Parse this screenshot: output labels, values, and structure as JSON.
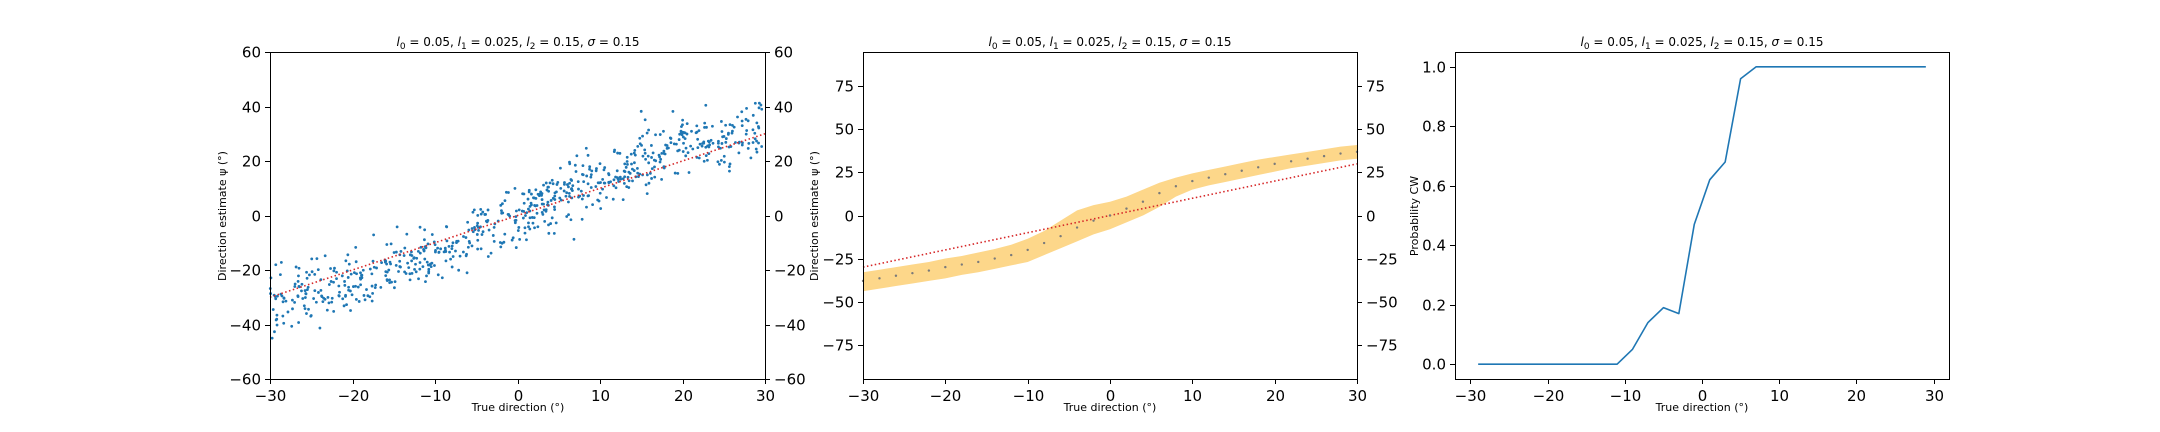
{
  "chart_data": [
    {
      "type": "scatter",
      "title": {
        "l0": "0.05",
        "l1": "0.025",
        "l2": "0.15",
        "sigma": "0.15"
      },
      "xlabel": "True direction (°)",
      "ylabel": "Direction estimate ψ (°)",
      "xlim": [
        -30,
        30
      ],
      "ylim": [
        -60,
        60
      ],
      "xticks": [
        -30,
        -20,
        -10,
        0,
        10,
        20,
        30
      ],
      "yticks": [
        -60,
        -40,
        -20,
        0,
        20,
        40,
        60
      ],
      "right_yticks": [
        -60,
        -40,
        -20,
        0,
        20,
        40,
        60
      ],
      "grid": false,
      "point_color": "#1f77b4",
      "scatter_model": {
        "slope": 1.35,
        "sat": 42,
        "noise_sd": 5.5,
        "n_points": 720,
        "seed": 7
      },
      "reference_line": {
        "x": [
          -30,
          30
        ],
        "y": [
          -30,
          30
        ],
        "color": "#d62728",
        "style": "dotted"
      }
    },
    {
      "type": "area",
      "title": {
        "l0": "0.05",
        "l1": "0.025",
        "l2": "0.15",
        "sigma": "0.15"
      },
      "xlabel": "True direction (°)",
      "ylabel": "Direction estimate ψ (°)",
      "xlim": [
        -30,
        30
      ],
      "ylim": [
        -95,
        95
      ],
      "xticks": [
        -30,
        -20,
        -10,
        0,
        10,
        20,
        30
      ],
      "yticks": [
        -75,
        -50,
        -25,
        0,
        25,
        50,
        75
      ],
      "right_yticks": [
        -75,
        -50,
        -25,
        0,
        25,
        50,
        75
      ],
      "grid": false,
      "band_color": "#fdd78a",
      "mean_color": "#7a7a7a",
      "x": [
        -30,
        -28,
        -26,
        -24,
        -22,
        -20,
        -18,
        -16,
        -14,
        -12,
        -10,
        -8,
        -6,
        -4,
        -2,
        0,
        2,
        4,
        6,
        8,
        10,
        12,
        14,
        16,
        18,
        20,
        22,
        24,
        26,
        28,
        30
      ],
      "mean": [
        -38,
        -36.5,
        -35,
        -33.5,
        -32,
        -30,
        -28.5,
        -27,
        -25,
        -23,
        -20,
        -16,
        -12,
        -7,
        -3,
        0,
        4,
        8,
        13,
        17,
        20,
        22,
        24,
        26,
        28,
        30,
        31.5,
        33,
        34.5,
        36,
        37
      ],
      "upper": [
        -33,
        -31.5,
        -30,
        -28.5,
        -27,
        -25,
        -23.5,
        -21.5,
        -19.5,
        -17,
        -13.5,
        -9,
        -3,
        3,
        6,
        8,
        11,
        15,
        19,
        22,
        24.5,
        26.5,
        28.5,
        30.5,
        32.5,
        34,
        35.5,
        37,
        38.5,
        40,
        41
      ],
      "lower": [
        -44,
        -42.5,
        -41,
        -39.5,
        -38,
        -36.5,
        -34.5,
        -33,
        -31,
        -29,
        -27,
        -23,
        -19,
        -15,
        -11,
        -8,
        -4,
        0,
        5,
        11,
        15,
        17.5,
        19.5,
        21.5,
        23.5,
        25.5,
        27.5,
        29,
        30.5,
        32,
        33
      ],
      "reference_line": {
        "x": [
          -30,
          30
        ],
        "y": [
          -30,
          30
        ],
        "color": "#d62728",
        "style": "dotted"
      }
    },
    {
      "type": "line",
      "title": {
        "l0": "0.05",
        "l1": "0.025",
        "l2": "0.15",
        "sigma": "0.15"
      },
      "xlabel": "True direction (°)",
      "ylabel": "Probability CW",
      "xlim": [
        -32,
        32
      ],
      "ylim": [
        -0.05,
        1.05
      ],
      "xticks": [
        -30,
        -20,
        -10,
        0,
        10,
        20,
        30
      ],
      "yticks": [
        0.0,
        0.2,
        0.4,
        0.6,
        0.8,
        1.0
      ],
      "grid": false,
      "line_color": "#1f77b4",
      "x": [
        -29,
        -27,
        -25,
        -23,
        -21,
        -19,
        -17,
        -15,
        -13,
        -11,
        -9,
        -7,
        -5,
        -3,
        -1,
        1,
        3,
        5,
        7,
        9,
        11,
        13,
        15,
        17,
        19,
        21,
        23,
        25,
        27,
        29
      ],
      "y": [
        0.0,
        0.0,
        0.0,
        0.0,
        0.0,
        0.0,
        0.0,
        0.0,
        0.0,
        0.0,
        0.05,
        0.14,
        0.19,
        0.17,
        0.47,
        0.62,
        0.68,
        0.96,
        1.0,
        1.0,
        1.0,
        1.0,
        1.0,
        1.0,
        1.0,
        1.0,
        1.0,
        1.0,
        1.0,
        1.0
      ]
    }
  ]
}
